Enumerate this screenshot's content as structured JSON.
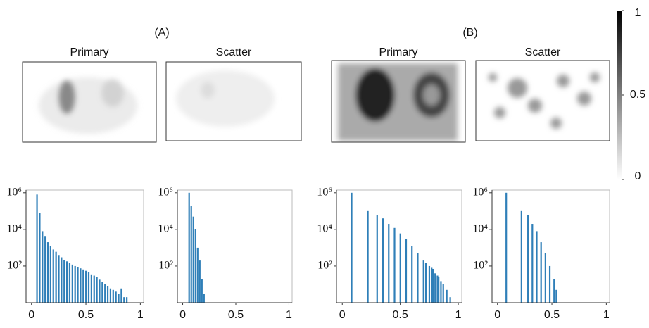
{
  "groups": [
    "(A)",
    "(B)"
  ],
  "chart_data": [
    {
      "type": "bar",
      "title": "Primary",
      "log_y": true,
      "color": "#2f7fb8",
      "x": [
        0.05,
        0.075,
        0.1,
        0.125,
        0.15,
        0.175,
        0.2,
        0.225,
        0.25,
        0.275,
        0.3,
        0.325,
        0.35,
        0.375,
        0.4,
        0.425,
        0.45,
        0.475,
        0.5,
        0.525,
        0.55,
        0.575,
        0.6,
        0.625,
        0.65,
        0.675,
        0.7,
        0.725,
        0.75,
        0.775,
        0.8,
        0.825,
        0.85,
        0.875
      ],
      "values": [
        800000,
        80000,
        8000,
        4000,
        2000,
        1200,
        800,
        600,
        400,
        300,
        220,
        180,
        150,
        120,
        100,
        90,
        75,
        65,
        55,
        45,
        35,
        30,
        25,
        18,
        14,
        10,
        8,
        6,
        5,
        4,
        3,
        6,
        2,
        2
      ],
      "xlim": [
        -0.05,
        1.03
      ],
      "xticks": [
        0,
        0.5,
        1
      ],
      "ylim": [
        1,
        1400000
      ],
      "yticks": [
        {
          "value": 100,
          "label": "10²"
        },
        {
          "value": 10000,
          "label": "10⁴"
        },
        {
          "value": 1000000,
          "label": "10⁶"
        }
      ]
    },
    {
      "type": "bar",
      "title": "Scatter",
      "log_y": true,
      "color": "#2f7fb8",
      "x": [
        0.06,
        0.08,
        0.1,
        0.12,
        0.14,
        0.16,
        0.18,
        0.2
      ],
      "values": [
        1000000,
        200000,
        50000,
        10000,
        1000,
        200,
        20,
        3
      ],
      "xlim": [
        -0.05,
        1.03
      ],
      "xticks": [
        0,
        0.5,
        1
      ],
      "ylim": [
        1,
        1400000
      ],
      "yticks": [
        {
          "value": 100,
          "label": "10²"
        },
        {
          "value": 10000,
          "label": "10⁴"
        },
        {
          "value": 1000000,
          "label": "10⁶"
        }
      ]
    },
    {
      "type": "bar",
      "title": "Primary",
      "log_y": true,
      "color": "#2f7fb8",
      "x": [
        0.08,
        0.22,
        0.3,
        0.35,
        0.4,
        0.45,
        0.5,
        0.55,
        0.6,
        0.65,
        0.7,
        0.72,
        0.75,
        0.77,
        0.78,
        0.8,
        0.82,
        0.83,
        0.85,
        0.87,
        0.9,
        0.93
      ],
      "values": [
        1000000,
        100000,
        60000,
        40000,
        20000,
        12000,
        6000,
        3000,
        1200,
        500,
        200,
        150,
        100,
        80,
        70,
        40,
        30,
        25,
        15,
        10,
        5,
        2
      ],
      "xlim": [
        -0.05,
        1.03
      ],
      "xticks": [
        0,
        0.5,
        1
      ],
      "ylim": [
        1,
        1400000
      ],
      "yticks": [
        {
          "value": 100,
          "label": "10²"
        },
        {
          "value": 10000,
          "label": "10⁴"
        },
        {
          "value": 1000000,
          "label": "10⁶"
        }
      ]
    },
    {
      "type": "bar",
      "title": "Scatter",
      "log_y": true,
      "color": "#2f7fb8",
      "x": [
        0.08,
        0.22,
        0.28,
        0.32,
        0.36,
        0.4,
        0.44,
        0.48,
        0.52,
        0.54
      ],
      "values": [
        1000000,
        100000,
        60000,
        20000,
        8000,
        2000,
        500,
        100,
        20,
        5
      ],
      "xlim": [
        -0.05,
        1.03
      ],
      "xticks": [
        0,
        0.5,
        1
      ],
      "ylim": [
        1,
        1400000
      ],
      "yticks": [
        {
          "value": 100,
          "label": "10²"
        },
        {
          "value": 10000,
          "label": "10⁴"
        },
        {
          "value": 1000000,
          "label": "10⁶"
        }
      ]
    },
    {
      "type": "colorbar",
      "ylim": [
        0,
        1
      ],
      "yticks": [
        0,
        0.5,
        1
      ]
    }
  ]
}
